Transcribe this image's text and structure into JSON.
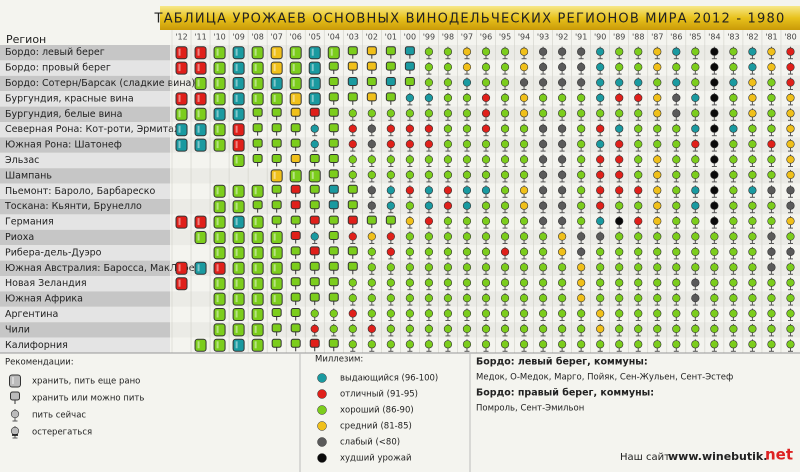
{
  "header": {
    "title": "ТАБЛИЦА УРОЖАЕВ ОСНОВНЫХ ВИНОДЕЛЬЧЕСКИХ РЕГИОНОВ МИРА 2012 - 1980",
    "region_label": "Регион"
  },
  "years": [
    "'12",
    "'11",
    "'10",
    "'09",
    "'08",
    "'07",
    "'06",
    "'05",
    "'04",
    "'03",
    "'02",
    "'01",
    "'00",
    "'99",
    "'98",
    "'97",
    "'96",
    "'95",
    "'94",
    "'93",
    "'92",
    "'91",
    "'90",
    "'89",
    "'88",
    "'87",
    "'86",
    "'85",
    "'84",
    "'83",
    "'82",
    "'81",
    "'80"
  ],
  "regions": [
    {
      "name": "Бордо: левый берег",
      "cells": "10 10 20 00 20 30 20 00 20 21 31 21 01 22 22 32 22 22 32 42 42 42 02 22 22 32 02 22 52 22 02 32 12"
    },
    {
      "name": "Бордо: провый берег",
      "cells": "10 10 20 00 20 30 20 00 21 31 31 21 01 22 22 32 22 22 32 42 42 42 02 22 22 32 22 22 52 22 02 32 12"
    },
    {
      "name": "Бордо: Сотерн/Барсак (сладкие вина)",
      "cells": "-- 20 20 00 20 00 20 00 21 01 21 01 21 22 22 02 22 22 42 42 42 42 02 02 02 22 02 22 52 02 32 22 12"
    },
    {
      "name": "Бургундия, красные вина",
      "cells": "10 10 20 00 20 20 30 00 21 21 31 21 02 02 22 22 12 22 32 22 22 22 02 12 12 32 42 02 52 22 32 22 32"
    },
    {
      "name": "Бургундия, белые вина",
      "cells": "20 20 00 00 21 21 31 11 21 22 22 22 22 22 22 22 12 22 32 22 22 22 22 22 22 32 42 22 52 22 32 22 32"
    },
    {
      "name": "Северная Рона: Кот-роти, Эрмитаж",
      "cells": "00 00 20 10 21 21 21 02 21 12 42 12 12 12 22 22 12 22 22 42 42 22 12 02 22 22 22 02 52 02 22 22 32"
    },
    {
      "name": "Южная Рона: Шатонеф",
      "cells": "00 00 20 10 21 21 21 02 21 12 42 12 12 12 22 22 22 22 22 42 42 22 02 12 22 22 22 12 52 22 22 12 32"
    },
    {
      "name": "Эльзас",
      "cells": "-- -- -- 20 21 21 31 21 21 22 22 22 22 22 22 22 22 22 22 42 42 22 12 12 22 32 22 22 52 22 22 22 32"
    },
    {
      "name": "Шампань",
      "cells": "-- -- -- -- -- 30 20 20 21 22 22 22 22 22 22 22 22 22 22 42 42 22 12 12 22 32 22 22 52 22 22 22 32"
    },
    {
      "name": "Пьемонт: Бароло, Барбареско",
      "cells": "-- -- 20 20 20 21 11 21 01 21 42 02 12 02 12 02 02 22 32 42 42 22 12 12 12 32 22 02 52 22 02 42 42"
    },
    {
      "name": "Тоскана: Кьянти, Брунелло",
      "cells": "-- -- 20 20 21 21 11 21 01 21 42 02 22 02 12 02 22 22 32 42 42 22 12 22 22 32 22 02 52 22 22 22 42"
    },
    {
      "name": "Германия",
      "cells": "10 10 20 00 20 21 21 11 21 11 21 21 32 12 22 22 22 22 22 42 42 22 02 52 12 32 22 22 52 22 22 22 32"
    },
    {
      "name": "Риоха",
      "cells": "-- 20 20 20 20 20 11 02 21 12 32 12 22 22 22 22 22 22 22 22 32 42 42 22 22 22 22 22 22 22 22 42 22"
    },
    {
      "name": "Рибера-дель-Дуэро",
      "cells": "-- -- 20 20 20 20 21 11 21 21 22 12 22 22 22 22 22 12 22 22 32 42 22 22 22 22 22 22 22 22 22 42 42"
    },
    {
      "name": "Южная Австралия: Бароcса, МакЛарен",
      "cells": "10 00 10 20 20 20 21 21 21 21 22 22 22 22 22 22 22 22 22 22 22 32 22 22 22 22 22 22 22 22 22 42 22"
    },
    {
      "name": "Новая Зеландия",
      "cells": "10 -- 20 20 20 20 21 21 21 22 22 22 22 22 22 22 22 22 22 22 22 32 22 22 22 22 22 42 22 22 22 22 22"
    },
    {
      "name": "Южная Африка",
      "cells": "-- -- 20 20 20 20 21 21 21 22 22 22 22 22 22 22 22 22 22 22 22 32 22 22 22 22 22 42 22 22 22 22 22"
    },
    {
      "name": "Аргентина",
      "cells": "-- -- 20 20 20 21 21 22 22 12 22 22 22 22 22 22 22 22 22 22 22 22 32 22 22 22 22 22 22 22 22 22 22"
    },
    {
      "name": "Чили",
      "cells": "-- -- 20 20 20 21 21 12 22 22 12 22 22 22 22 22 22 22 22 22 22 22 32 22 22 22 22 22 22 22 22 22 22"
    },
    {
      "name": "Калифорния",
      "cells": "-- 20 20 00 20 21 21 11 21 22 22 22 22 22 22 22 22 22 22 22 22 22 22 22 22 22 22 22 22 22 22 22 22"
    }
  ],
  "recommendations": {
    "title": "Рекомендации:",
    "items": [
      "хранить, пить еще рано",
      "хранить или можно пить",
      "пить сейчас",
      "остерегаться"
    ]
  },
  "vintage_quality": {
    "title": "Миллезим:",
    "items": [
      {
        "label": "выдающийся (96-100)",
        "color": "#1a9aa0"
      },
      {
        "label": "отличный (91-95)",
        "color": "#e0201a"
      },
      {
        "label": "хороший (86-90)",
        "color": "#7ccd1c"
      },
      {
        "label": "средний (81-85)",
        "color": "#f0c01a"
      },
      {
        "label": "слабый (<80)",
        "color": "#5a5a5a"
      },
      {
        "label": "худший урожай",
        "color": "#0a0a0a"
      }
    ]
  },
  "notes": [
    {
      "heading": "Бордо: левый берег, коммуны:",
      "text": "Медок, О-Медок, Марго, Пойяк, Сен-Жульен, Сент-Эстеф"
    },
    {
      "heading": "Бордо: правый берег, коммуны:",
      "text": "Помроль, Сент-Эмильон"
    }
  ],
  "footer": {
    "site_label": "Наш сайт",
    "site_url": "www.winebutik.",
    "site_tld": "net"
  }
}
